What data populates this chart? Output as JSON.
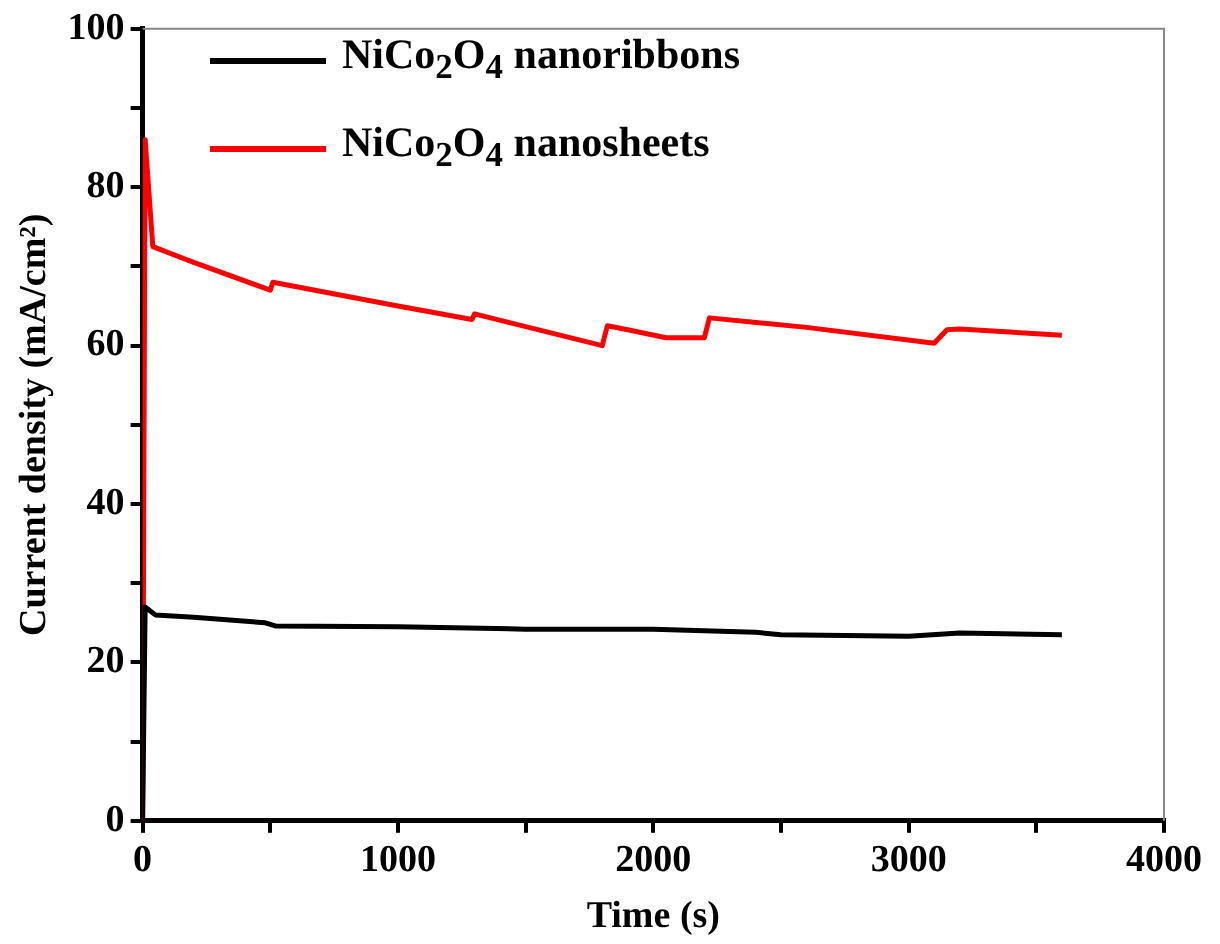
{
  "chart_data": {
    "type": "line",
    "xlabel": "Time (s)",
    "ylabel": "Current density (mA/cm²)",
    "xlim": [
      0,
      4000
    ],
    "xticks": [
      0,
      {
        "value": 500,
        "label": null
      },
      1000,
      {
        "value": 1500,
        "label": null
      },
      2000,
      {
        "value": 2500,
        "label": null
      },
      3000,
      {
        "value": 3500,
        "label": null
      },
      4000
    ],
    "ylim": [
      0,
      100
    ],
    "yticks": [
      0,
      {
        "value": 10,
        "label": null
      },
      20,
      {
        "value": 30,
        "label": null
      },
      40,
      {
        "value": 50,
        "label": null
      },
      60,
      {
        "value": 70,
        "label": null
      },
      80,
      {
        "value": 90,
        "label": null
      },
      100
    ],
    "grid": false,
    "legend": "top left",
    "marker": "none",
    "line_style": "solid",
    "series": [
      {
        "name": "NiCo$_{2}$O$_{4}$ nanoribbons",
        "color": "#000000",
        "x": [
          0,
          10,
          50,
          200,
          480,
          520,
          1000,
          1500,
          2000,
          2400,
          2500,
          3000,
          3200,
          3600
        ],
        "values": [
          0,
          27,
          26,
          25.7,
          25,
          24.6,
          24.5,
          24.2,
          24.2,
          23.8,
          23.5,
          23.3,
          23.7,
          23.5
        ]
      },
      {
        "name": "NiCo$_{2}$O$_{4}$ nanosheets",
        "color": "#ff0000",
        "x": [
          0,
          10,
          40,
          200,
          500,
          510,
          1000,
          1290,
          1300,
          1800,
          1820,
          1900,
          2050,
          2200,
          2220,
          2600,
          3100,
          3150,
          3200,
          3600
        ],
        "values": [
          0,
          86,
          72.5,
          70.5,
          67,
          68,
          65,
          63.3,
          64,
          60,
          62.5,
          62,
          61,
          61,
          63.5,
          62.3,
          60.3,
          62,
          62.1,
          61.3
        ]
      }
    ]
  }
}
